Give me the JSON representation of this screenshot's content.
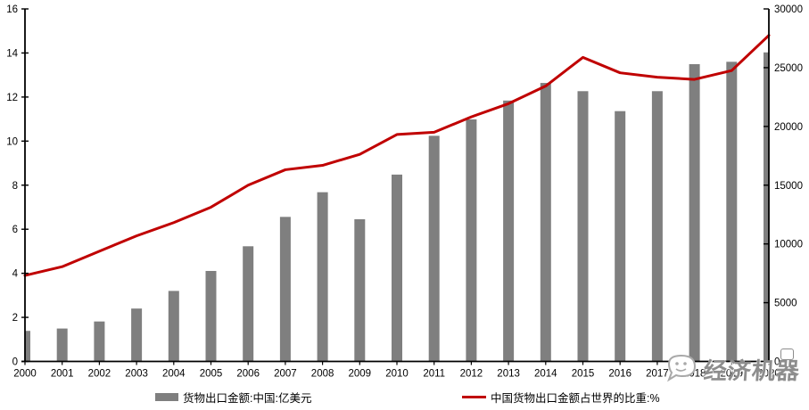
{
  "chart_data": {
    "type": "combo",
    "title": "",
    "categories": [
      "2000",
      "2001",
      "2002",
      "2003",
      "2004",
      "2005",
      "2006",
      "2007",
      "2008",
      "2009",
      "2010",
      "2011",
      "2012",
      "2013",
      "2014",
      "2015",
      "2016",
      "2017",
      "2018",
      "2019",
      "2020"
    ],
    "series": [
      {
        "name": "货物出口金额:中国:亿美元",
        "type": "bar",
        "axis": "right",
        "color": "#7F7F7F",
        "values": [
          2600,
          2800,
          3400,
          4500,
          6000,
          7700,
          9800,
          12300,
          14400,
          12100,
          15900,
          19200,
          20600,
          22200,
          23700,
          23000,
          21300,
          23000,
          25300,
          25500,
          26300
        ]
      },
      {
        "name": "中国货物出口金额占世界的比重:%",
        "type": "line",
        "axis": "left",
        "color": "#C00000",
        "values": [
          3.9,
          4.3,
          5.0,
          5.7,
          6.3,
          7.0,
          8.0,
          8.7,
          8.9,
          9.4,
          10.3,
          10.4,
          11.1,
          11.7,
          12.5,
          13.8,
          13.1,
          12.9,
          12.8,
          13.2,
          14.8
        ]
      }
    ],
    "left_axis": {
      "min": 0,
      "max": 16,
      "step": 2,
      "labels": [
        "0",
        "2",
        "4",
        "6",
        "8",
        "10",
        "12",
        "14",
        "16"
      ]
    },
    "right_axis": {
      "min": 0,
      "max": 30000,
      "step": 5000,
      "labels": [
        "0",
        "5000",
        "10000",
        "15000",
        "20000",
        "25000",
        "30000"
      ]
    },
    "grid": false,
    "legend_position": "bottom",
    "xlabel": "",
    "ylabel": ""
  },
  "watermark": {
    "text": "经济机器"
  }
}
